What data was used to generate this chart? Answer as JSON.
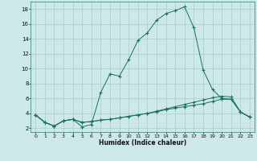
{
  "xlabel": "Humidex (Indice chaleur)",
  "bg_color": "#cce8e8",
  "line_color": "#1a6e64",
  "grid_color": "#aacccc",
  "xlim": [
    -0.5,
    23.5
  ],
  "ylim": [
    1.5,
    19.0
  ],
  "yticks": [
    2,
    4,
    6,
    8,
    10,
    12,
    14,
    16,
    18
  ],
  "xticks": [
    0,
    1,
    2,
    3,
    4,
    5,
    6,
    7,
    8,
    9,
    10,
    11,
    12,
    13,
    14,
    15,
    16,
    17,
    18,
    19,
    20,
    21,
    22,
    23
  ],
  "series": [
    {
      "x": [
        0,
        1,
        2,
        3,
        4,
        5,
        6,
        7,
        8,
        9,
        10,
        11,
        12,
        13,
        14,
        15,
        16,
        17,
        18,
        19,
        20,
        21,
        22,
        23
      ],
      "y": [
        3.8,
        2.8,
        2.3,
        3.0,
        3.2,
        2.2,
        2.5,
        6.8,
        9.3,
        9.0,
        11.2,
        13.8,
        14.8,
        16.5,
        17.4,
        17.8,
        18.3,
        15.5,
        9.8,
        7.2,
        6.0,
        5.9,
        4.2,
        3.5
      ]
    },
    {
      "x": [
        0,
        1,
        2,
        3,
        4,
        5,
        6,
        7,
        8,
        9,
        10,
        11,
        12,
        13,
        14,
        15,
        16,
        17,
        18,
        19,
        20,
        21,
        22,
        23
      ],
      "y": [
        3.8,
        2.8,
        2.3,
        3.0,
        3.2,
        2.8,
        2.9,
        3.1,
        3.2,
        3.4,
        3.6,
        3.8,
        4.0,
        4.2,
        4.5,
        4.7,
        4.9,
        5.1,
        5.3,
        5.6,
        5.9,
        5.9,
        4.2,
        3.5
      ]
    },
    {
      "x": [
        0,
        1,
        2,
        3,
        4,
        5,
        6,
        7,
        8,
        9,
        10,
        11,
        12,
        13,
        14,
        15,
        16,
        17,
        18,
        19,
        20,
        21,
        22,
        23
      ],
      "y": [
        3.8,
        2.8,
        2.3,
        3.0,
        3.2,
        2.8,
        2.9,
        3.1,
        3.2,
        3.4,
        3.6,
        3.8,
        4.0,
        4.3,
        4.6,
        4.9,
        5.2,
        5.5,
        5.8,
        6.1,
        6.3,
        6.2,
        4.2,
        3.5
      ]
    }
  ]
}
